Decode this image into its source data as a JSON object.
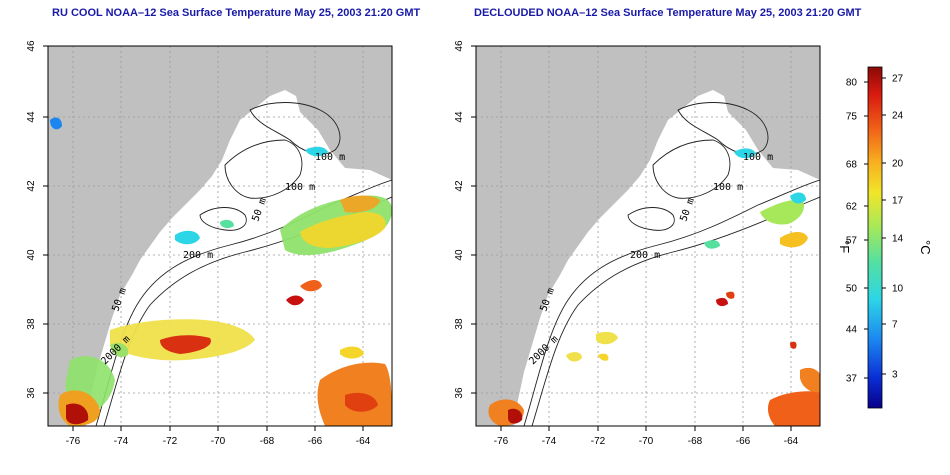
{
  "panels": [
    {
      "title": "RU COOL NOAA–12 Sea Surface Temperature May 25, 2003 21:20 GMT",
      "x_ticks": [
        "-76",
        "-74",
        "-72",
        "-70",
        "-68",
        "-66",
        "-64"
      ],
      "y_ticks": [
        "46",
        "44",
        "42",
        "40",
        "38",
        "36"
      ]
    },
    {
      "title": "DECLOUDED NOAA–12 Sea Surface Temperature May 25, 2003 21:20 GMT",
      "x_ticks": [
        "-76",
        "-74",
        "-72",
        "-70",
        "-68",
        "-66",
        "-64"
      ],
      "y_ticks": [
        "46",
        "44",
        "42",
        "40",
        "38",
        "36"
      ]
    }
  ],
  "contour_labels": [
    "100 m",
    "100 m",
    "50 m",
    "200 m",
    "50 m",
    "2000 m"
  ],
  "colorbar": {
    "fahrenheit_labels": [
      "80",
      "75",
      "68",
      "62",
      "57",
      "50",
      "44",
      "37"
    ],
    "celsius_labels": [
      "27",
      "24",
      "20",
      "17",
      "14",
      "10",
      "7",
      "3"
    ],
    "fahrenheit_unit": "°F",
    "celsius_unit": "°C",
    "colors": [
      "#08008a",
      "#0a2fd6",
      "#1c86f0",
      "#2dd6e6",
      "#55e0a0",
      "#a6e85a",
      "#f0e62a",
      "#f8b020",
      "#f06018",
      "#d81a10",
      "#8a0a08"
    ]
  },
  "colors": {
    "land": "#c0c0c0",
    "ocean": "#ffffff",
    "title": "#1a1aa8",
    "grid": "#9a9a9a"
  }
}
